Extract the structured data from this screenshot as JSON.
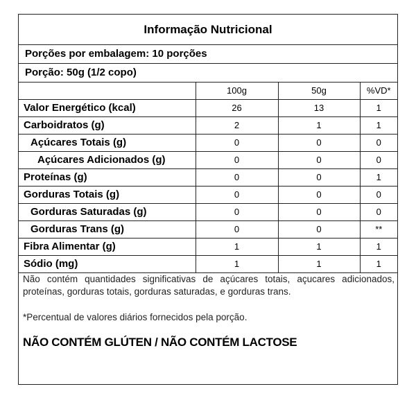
{
  "title": "Informação  Nutricional",
  "servings_per_package": "Porções por embalagem: 10 porções",
  "serving_size": "Porção: 50g (1/2 copo)",
  "columns": [
    "",
    "100g",
    "50g",
    "%VD*"
  ],
  "rows": [
    {
      "name": "Valor Energético (kcal)",
      "indent": 0,
      "v100": "26",
      "v50": "13",
      "vd": "1"
    },
    {
      "name": "Carboidratos (g)",
      "indent": 0,
      "v100": "2",
      "v50": "1",
      "vd": "1"
    },
    {
      "name": "Açúcares Totais (g)",
      "indent": 1,
      "v100": "0",
      "v50": "0",
      "vd": "0"
    },
    {
      "name": "Açúcares Adicionados (g)",
      "indent": 2,
      "v100": "0",
      "v50": "0",
      "vd": "0"
    },
    {
      "name": "Proteínas (g)",
      "indent": 0,
      "v100": "0",
      "v50": "0",
      "vd": "1"
    },
    {
      "name": "Gorduras Totais (g)",
      "indent": 0,
      "v100": "0",
      "v50": "0",
      "vd": "0"
    },
    {
      "name": "Gorduras Saturadas (g)",
      "indent": 1,
      "v100": "0",
      "v50": "0",
      "vd": "0"
    },
    {
      "name": "Gorduras Trans (g)",
      "indent": 1,
      "v100": "0",
      "v50": "0",
      "vd": "**"
    },
    {
      "name": "Fibra Alimentar (g)",
      "indent": 0,
      "v100": "1",
      "v50": "1",
      "vd": "1"
    },
    {
      "name": "Sódio (mg)",
      "indent": 0,
      "v100": "1",
      "v50": "1",
      "vd": "1"
    }
  ],
  "footnote": "Não contém quantidades significativas de açúcares totais, açucares adicionados, proteínas, gorduras totais, gorduras saturadas, e gorduras trans.",
  "vd_note": "*Percentual  de valores diários fornecidos pela porção.",
  "claim": "NÃO CONTÉM GLÚTEN / NÃO CONTÉM LACTOSE"
}
